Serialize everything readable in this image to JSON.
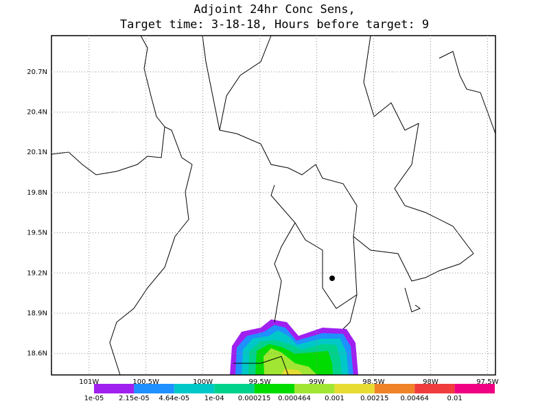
{
  "map": {
    "title": [
      "Adjoint 24hr Conc Sens,",
      "Target time: 3-18-18, Hours before target: 9"
    ],
    "xlim": [
      -101.33,
      -97.43
    ],
    "ylim": [
      18.44,
      20.97
    ],
    "xticks": [
      {
        "value": -101,
        "label": "101W"
      },
      {
        "value": -100.5,
        "label": "100.5W"
      },
      {
        "value": -100,
        "label": "100W"
      },
      {
        "value": -99.5,
        "label": "99.5W"
      },
      {
        "value": -99,
        "label": "99W"
      },
      {
        "value": -98.5,
        "label": "98.5W"
      },
      {
        "value": -98,
        "label": "98W"
      },
      {
        "value": -97.5,
        "label": "97.5W"
      }
    ],
    "yticks": [
      {
        "value": 18.6,
        "label": "18.6N"
      },
      {
        "value": 18.9,
        "label": "18.9N"
      },
      {
        "value": 19.2,
        "label": "19.2N"
      },
      {
        "value": 19.5,
        "label": "19.5N"
      },
      {
        "value": 19.8,
        "label": "19.8N"
      },
      {
        "value": 20.1,
        "label": "20.1N"
      },
      {
        "value": 20.4,
        "label": "20.4N"
      },
      {
        "value": 20.7,
        "label": "20.7N"
      }
    ],
    "grid": true,
    "colorbar": {
      "levels": [
        {
          "value": 1e-05,
          "label": "1e-05"
        },
        {
          "value": 2.15e-05,
          "label": "2.15e-05"
        },
        {
          "value": 4.64e-05,
          "label": "4.64e-05"
        },
        {
          "value": 0.0001,
          "label": "1e-04"
        },
        {
          "value": 0.000215,
          "label": "0.000215"
        },
        {
          "value": 0.000464,
          "label": "0.000464"
        },
        {
          "value": 0.001,
          "label": "0.001"
        },
        {
          "value": 0.00215,
          "label": "0.00215"
        },
        {
          "value": 0.00464,
          "label": "0.00464"
        },
        {
          "value": 0.01,
          "label": "0.01"
        }
      ],
      "colors": [
        "#a020f0",
        "#1e90ff",
        "#00c8c8",
        "#00d28c",
        "#00dc00",
        "#a0e632",
        "#e6dc32",
        "#f08228",
        "#f03c3c",
        "#f00082"
      ]
    }
  }
}
